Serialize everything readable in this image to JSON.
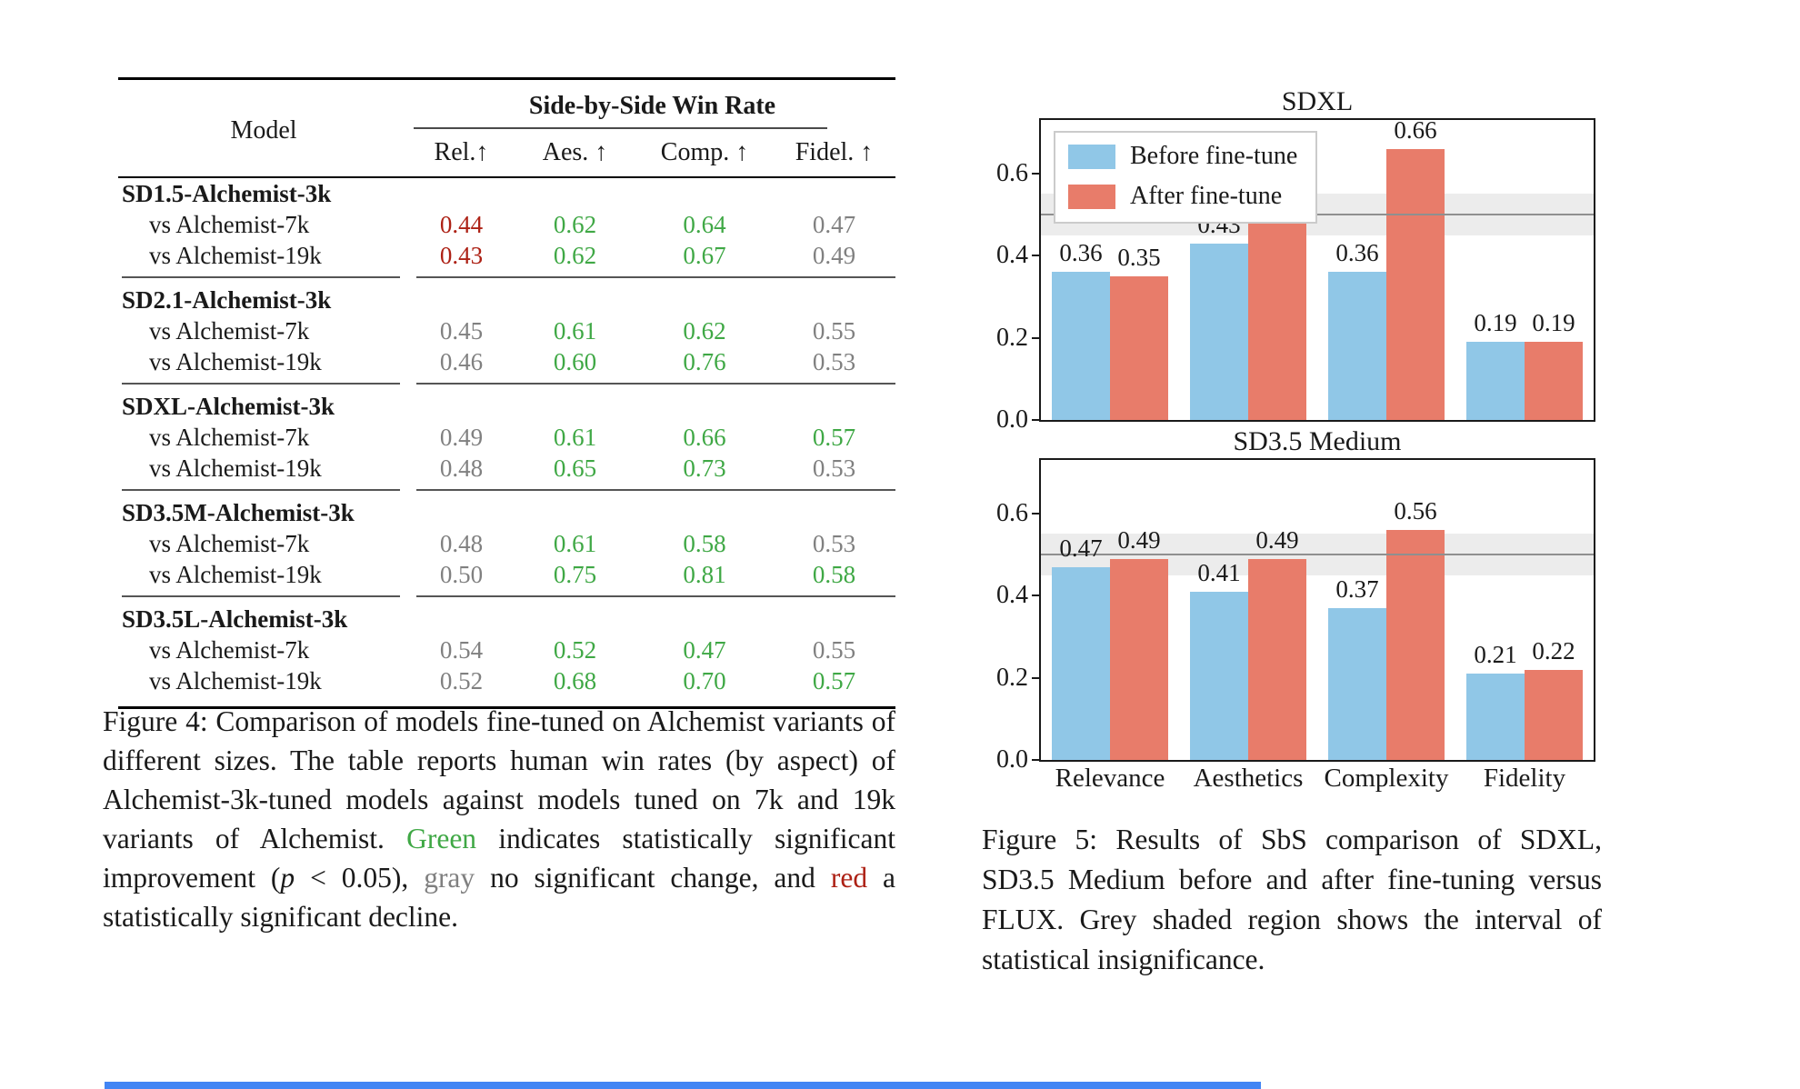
{
  "colors": {
    "green": "#3fa845",
    "red": "#ad2115",
    "gray": "#808080",
    "text": "#1a1a1a",
    "bar_before": "#90c7e7",
    "bar_after": "#e87c6a",
    "band": "#ececec",
    "band_line": "#8f8f8f",
    "bottom_strip": "#4285f4"
  },
  "figure4": {
    "table": {
      "model_header": "Model",
      "group_header": "Side-by-Side Win Rate",
      "columns": [
        "Rel.↑",
        "Aes. ↑",
        "Comp. ↑",
        "Fidel. ↑"
      ],
      "groups": [
        {
          "model": "SD1.5-Alchemist-3k",
          "rows": [
            {
              "label": "vs Alchemist-7k",
              "values": [
                "0.44",
                "0.62",
                "0.64",
                "0.47"
              ],
              "colors": [
                "red",
                "green",
                "green",
                "gray"
              ]
            },
            {
              "label": "vs Alchemist-19k",
              "values": [
                "0.43",
                "0.62",
                "0.67",
                "0.49"
              ],
              "colors": [
                "red",
                "green",
                "green",
                "gray"
              ]
            }
          ]
        },
        {
          "model": "SD2.1-Alchemist-3k",
          "rows": [
            {
              "label": "vs Alchemist-7k",
              "values": [
                "0.45",
                "0.61",
                "0.62",
                "0.55"
              ],
              "colors": [
                "gray",
                "green",
                "green",
                "gray"
              ]
            },
            {
              "label": "vs Alchemist-19k",
              "values": [
                "0.46",
                "0.60",
                "0.76",
                "0.53"
              ],
              "colors": [
                "gray",
                "green",
                "green",
                "gray"
              ]
            }
          ]
        },
        {
          "model": "SDXL-Alchemist-3k",
          "rows": [
            {
              "label": "vs Alchemist-7k",
              "values": [
                "0.49",
                "0.61",
                "0.66",
                "0.57"
              ],
              "colors": [
                "gray",
                "green",
                "green",
                "green"
              ]
            },
            {
              "label": "vs Alchemist-19k",
              "values": [
                "0.48",
                "0.65",
                "0.73",
                "0.53"
              ],
              "colors": [
                "gray",
                "green",
                "green",
                "gray"
              ]
            }
          ]
        },
        {
          "model": "SD3.5M-Alchemist-3k",
          "rows": [
            {
              "label": "vs Alchemist-7k",
              "values": [
                "0.48",
                "0.61",
                "0.58",
                "0.53"
              ],
              "colors": [
                "gray",
                "green",
                "green",
                "gray"
              ]
            },
            {
              "label": "vs Alchemist-19k",
              "values": [
                "0.50",
                "0.75",
                "0.81",
                "0.58"
              ],
              "colors": [
                "gray",
                "green",
                "green",
                "green"
              ]
            }
          ]
        },
        {
          "model": "SD3.5L-Alchemist-3k",
          "rows": [
            {
              "label": "vs Alchemist-7k",
              "values": [
                "0.54",
                "0.52",
                "0.47",
                "0.55"
              ],
              "colors": [
                "gray",
                "green",
                "green",
                "gray"
              ]
            },
            {
              "label": "vs Alchemist-19k",
              "values": [
                "0.52",
                "0.68",
                "0.70",
                "0.57"
              ],
              "colors": [
                "gray",
                "green",
                "green",
                "green"
              ]
            }
          ]
        }
      ]
    },
    "caption_segments": [
      {
        "text": "Figure 4:  Comparison of models fine-tuned on Alchemist variants of different sizes.  The table reports human win rates (by aspect) of Alchemist-3k-tuned models against models tuned on 7k and 19k variants of Alchemist. ",
        "style": "black"
      },
      {
        "text": "Green",
        "style": "green"
      },
      {
        "text": " indicates statistically significant improvement (",
        "style": "black"
      },
      {
        "text": "p",
        "style": "italic"
      },
      {
        "text": " < 0.05), ",
        "style": "black"
      },
      {
        "text": "gray",
        "style": "gray"
      },
      {
        "text": " no significant change, and ",
        "style": "black"
      },
      {
        "text": "red",
        "style": "red"
      },
      {
        "text": " a statistically significant decline.",
        "style": "black"
      }
    ]
  },
  "figure5": {
    "caption": "Figure 5: Results of SbS comparison of SDXL, SD3.5 Medium before and after fine-tuning versus FLUX. Grey shaded region shows the interval of statistical insignificance."
  },
  "chart_data": [
    {
      "type": "bar",
      "title": "SDXL",
      "categories": [
        "Relevance",
        "Aesthetics",
        "Complexity",
        "Fidelity"
      ],
      "series": [
        {
          "name": "Before fine-tune",
          "values": [
            0.36,
            0.43,
            0.36,
            0.19
          ]
        },
        {
          "name": "After fine-tune",
          "values": [
            0.35,
            0.52,
            0.66,
            0.19
          ]
        }
      ],
      "ylim": [
        0,
        0.73
      ],
      "yticks": [
        0.0,
        0.2,
        0.4,
        0.6
      ],
      "insignificance_band": [
        0.45,
        0.55
      ],
      "reference_line": 0.5,
      "legend_position": "upper left",
      "show_x_tick_labels": false,
      "grid": false
    },
    {
      "type": "bar",
      "title": "SD3.5 Medium",
      "categories": [
        "Relevance",
        "Aesthetics",
        "Complexity",
        "Fidelity"
      ],
      "series": [
        {
          "name": "Before fine-tune",
          "values": [
            0.47,
            0.41,
            0.37,
            0.21
          ]
        },
        {
          "name": "After fine-tune",
          "values": [
            0.49,
            0.49,
            0.56,
            0.22
          ]
        }
      ],
      "ylim": [
        0,
        0.73
      ],
      "yticks": [
        0.0,
        0.2,
        0.4,
        0.6
      ],
      "insignificance_band": [
        0.45,
        0.55
      ],
      "reference_line": 0.5,
      "legend_position": "none",
      "show_x_tick_labels": true,
      "grid": false
    }
  ]
}
